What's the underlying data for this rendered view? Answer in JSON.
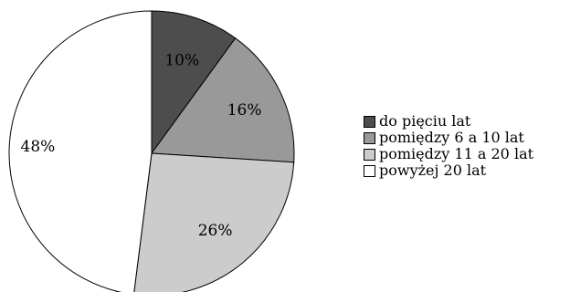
{
  "chart_data": {
    "type": "pie",
    "slices": [
      {
        "label": "do pięciu lat",
        "value": 10,
        "color": "#4d4d4d"
      },
      {
        "label": "pomiędzy 6 a 10 lat",
        "value": 16,
        "color": "#999999"
      },
      {
        "label": "pomiędzy 11 a 20 lat",
        "value": 26,
        "color": "#cccccc"
      },
      {
        "label": "powyżej 20 lat",
        "value": 48,
        "color": "#ffffff"
      }
    ],
    "value_labels": [
      "10%",
      "16%",
      "26%",
      "48%"
    ],
    "legend": {
      "position": "right",
      "entries": [
        "do pięciu lat",
        "pomiędzy 6 a 10 lat",
        "pomiędzy 11 a 20 lat",
        "powyżej 20 lat"
      ]
    }
  }
}
